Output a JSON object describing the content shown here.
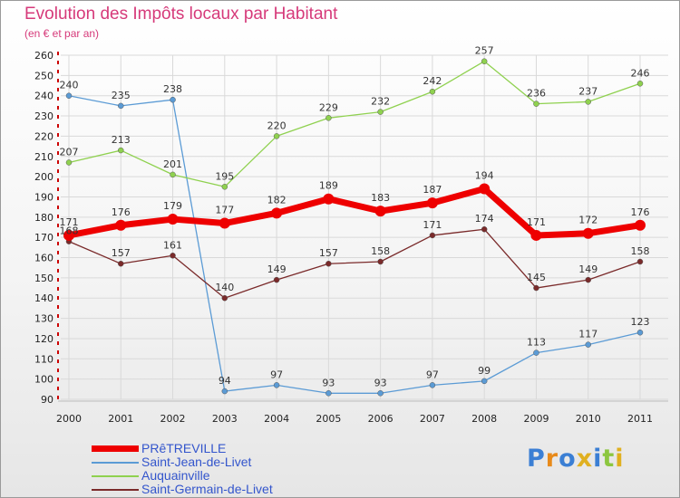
{
  "header": {
    "title": "Evolution des Impôts locaux par Habitant",
    "subtitle": "(en € et par an)"
  },
  "colors": {
    "title": "#d63a7a",
    "legend_text": "#3355cc",
    "grid": "#d9d9d9",
    "axis_red": "#cc0000"
  },
  "logo": {
    "text": "Proxiti"
  },
  "chart_data": {
    "type": "line",
    "x": [
      "2000",
      "2001",
      "2002",
      "2003",
      "2004",
      "2005",
      "2006",
      "2007",
      "2008",
      "2009",
      "2010",
      "2011"
    ],
    "ylim": [
      90,
      260
    ],
    "yticks": [
      90,
      100,
      110,
      120,
      130,
      140,
      150,
      160,
      170,
      180,
      190,
      200,
      210,
      220,
      230,
      240,
      250,
      260
    ],
    "grid": true,
    "legend_position": "bottom-left",
    "series": [
      {
        "name": "PRêTREVILLE",
        "color": "#ee0000",
        "values": [
          171,
          176,
          179,
          177,
          182,
          189,
          183,
          187,
          194,
          171,
          172,
          176
        ]
      },
      {
        "name": "Saint-Jean-de-Livet",
        "color": "#5b9bd5",
        "values": [
          240,
          235,
          238,
          94,
          97,
          93,
          93,
          97,
          99,
          113,
          117,
          123
        ]
      },
      {
        "name": "Auquainville",
        "color": "#8fd14f",
        "values": [
          207,
          213,
          201,
          195,
          220,
          229,
          232,
          242,
          257,
          236,
          237,
          246
        ]
      },
      {
        "name": "Saint-Germain-de-Livet",
        "color": "#7a2a2a",
        "values": [
          168,
          157,
          161,
          140,
          149,
          157,
          158,
          171,
          174,
          145,
          149,
          158
        ]
      }
    ]
  }
}
